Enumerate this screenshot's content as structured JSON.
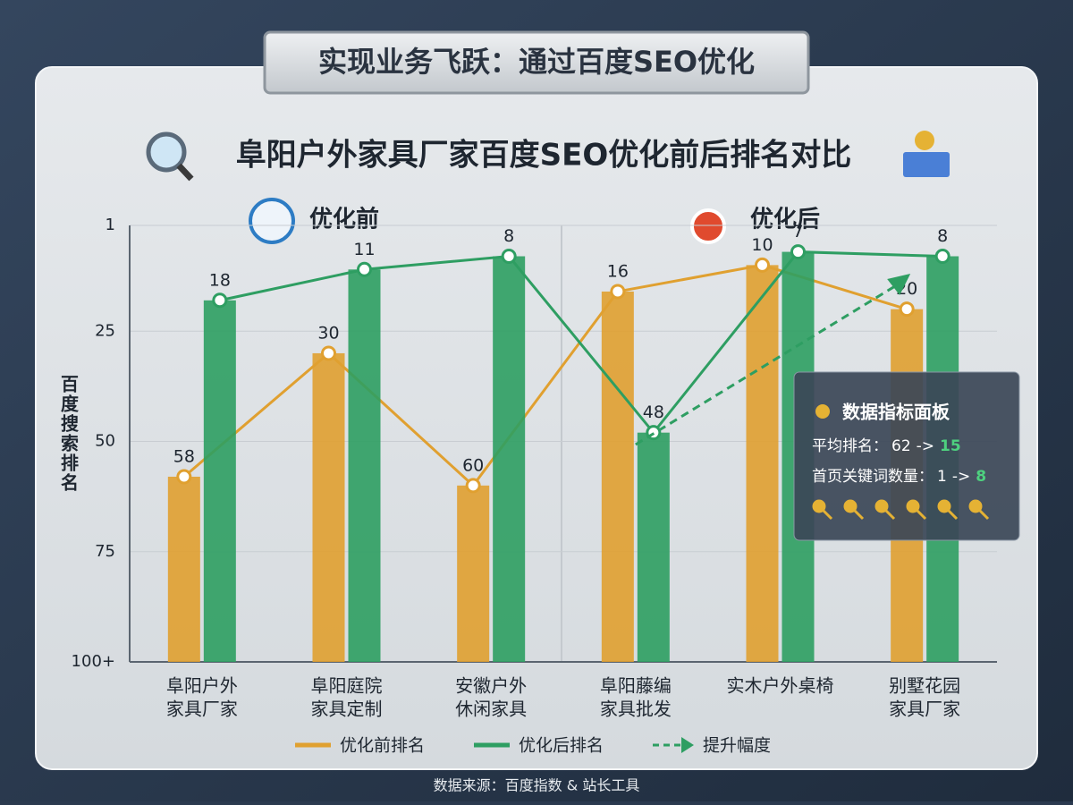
{
  "banner": "实现业务飞跃：通过百度SEO优化",
  "source": "数据来源：百度指数 & 站长工具",
  "panel": {
    "title": "数据指标面板",
    "avg_label": "平均排名：",
    "avg_before": 62,
    "arrow": "->",
    "avg_after": 15,
    "kw_label": "首页关键词数量：",
    "kw_before": 1,
    "kw_after": 8
  },
  "chart_data": {
    "type": "bar",
    "title": "阜阳户外家具厂家百度SEO优化前后排名对比",
    "sections": [
      "优化前",
      "优化后"
    ],
    "y_label": "百度搜索排名",
    "categories": [
      [
        "阜阳户外",
        "家具厂家"
      ],
      [
        "阜阳庭院",
        "家具定制"
      ],
      [
        "安徽户外",
        "休闲家具"
      ],
      [
        "阜阳藤编",
        "家具批发"
      ],
      [
        "实木户外桌椅"
      ],
      [
        "别墅花园",
        "家具厂家"
      ]
    ],
    "series": [
      {
        "name": "优化前排名",
        "color": "#e0a030",
        "values": [
          58,
          30,
          60,
          16,
          10,
          20
        ]
      },
      {
        "name": "优化后排名",
        "color": "#2e9e62",
        "values": [
          18,
          11,
          8,
          48,
          7,
          8
        ]
      }
    ],
    "trend_label": "提升幅度",
    "ylim": [
      100,
      1
    ],
    "yticks": [
      {
        "value": 100,
        "label": "100+"
      },
      75,
      50,
      25,
      1
    ],
    "grid": true
  }
}
